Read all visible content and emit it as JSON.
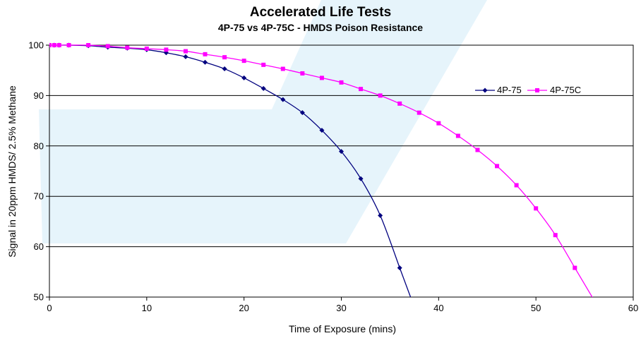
{
  "chart_data": {
    "type": "line",
    "title": "Accelerated Life Tests",
    "subtitle": "4P-75 vs 4P-75C - HMDS Poison Resistance",
    "xlabel": "Time of Exposure (mins)",
    "ylabel": "Signal in 20ppm HMDS/ 2.5% Methane",
    "xlim": [
      0,
      60
    ],
    "ylim": [
      50,
      100
    ],
    "x_ticks": [
      "0",
      "10",
      "20",
      "30",
      "40",
      "50",
      "60"
    ],
    "y_ticks": [
      "50",
      "60",
      "70",
      "80",
      "90",
      "100"
    ],
    "grid": "horizontal",
    "legend_position": "top-right",
    "series": [
      {
        "name": "4P-75",
        "color": "#00007f",
        "marker": "diamond",
        "x": [
          0,
          0.5,
          1,
          2,
          4,
          6,
          8,
          10,
          12,
          14,
          16,
          18,
          20,
          22,
          24,
          26,
          28,
          30,
          32,
          34,
          36
        ],
        "y": [
          100,
          100,
          100,
          100,
          99.9,
          99.6,
          99.4,
          99.1,
          98.5,
          97.7,
          96.6,
          95.3,
          93.5,
          91.4,
          89.2,
          86.6,
          83.1,
          78.9,
          73.5,
          66.2,
          55.8
        ]
      },
      {
        "name": "4P-75C",
        "color": "#ff00ff",
        "marker": "square",
        "x": [
          0,
          0.5,
          1,
          2,
          4,
          6,
          8,
          10,
          12,
          14,
          16,
          18,
          20,
          22,
          24,
          26,
          28,
          30,
          32,
          34,
          36,
          38,
          40,
          42,
          44,
          46,
          48,
          50,
          52,
          54
        ],
        "y": [
          100,
          100,
          100,
          100,
          100,
          99.8,
          99.5,
          99.3,
          99.1,
          98.8,
          98.2,
          97.6,
          96.9,
          96.1,
          95.3,
          94.4,
          93.5,
          92.6,
          91.3,
          90,
          88.4,
          86.6,
          84.5,
          82,
          79.2,
          76,
          72.2,
          67.6,
          62.3,
          55.8
        ]
      }
    ]
  }
}
